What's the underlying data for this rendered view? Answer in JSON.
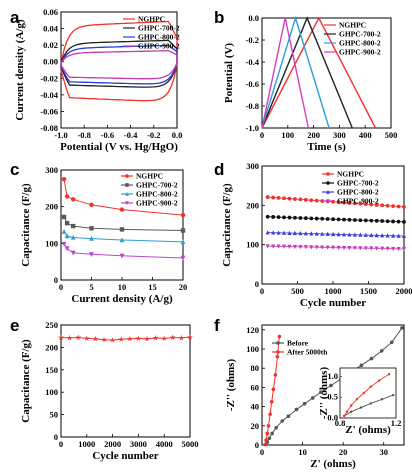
{
  "chart_data": [
    {
      "panel": "a",
      "type": "line",
      "xlabel": "Potential (V vs. Hg/HgO)",
      "ylabel": "Current density (A/g)",
      "xlim": [
        -1.0,
        0.0
      ],
      "ylim": [
        -0.08,
        0.06
      ],
      "xticks": [
        "-1.0",
        "-0.8",
        "-0.6",
        "-0.4",
        "-0.2",
        "0.0"
      ],
      "yticks": [
        "-0.08",
        "-0.06",
        "-0.04",
        "-0.02",
        "0.00",
        "0.02",
        "0.04",
        "0.06"
      ],
      "legend_position": "top-right",
      "series": [
        {
          "name": "NGHPC",
          "color": "#f2312b",
          "top": 0.046,
          "bottom": -0.046,
          "tilt": 0.006
        },
        {
          "name": "GHPC-700-2",
          "color": "#222222",
          "top": 0.024,
          "bottom": -0.03,
          "tilt": 0.004
        },
        {
          "name": "GHPC-800-2",
          "color": "#1f3fd8",
          "top": 0.018,
          "bottom": -0.026,
          "tilt": 0.004
        },
        {
          "name": "GHPC-900-2",
          "color": "#c63ab0",
          "top": 0.012,
          "bottom": -0.02,
          "tilt": 0.003
        }
      ]
    },
    {
      "panel": "b",
      "type": "line",
      "xlabel": "Time (s)",
      "ylabel": "Potential (V)",
      "xlim": [
        0,
        500
      ],
      "ylim": [
        -1.0,
        0.0
      ],
      "xticks": [
        "0",
        "100",
        "200",
        "300",
        "400",
        "500"
      ],
      "yticks": [
        "-1.0",
        "-0.8",
        "-0.6",
        "-0.4",
        "-0.2",
        "0.0"
      ],
      "legend_position": "top-right",
      "series": [
        {
          "name": "NGHPC",
          "color": "#f2312b",
          "x": [
            0,
            220,
            440
          ],
          "y": [
            -1.0,
            0.0,
            -1.0
          ]
        },
        {
          "name": "GHPC-700-2",
          "color": "#222222",
          "x": [
            0,
            175,
            350
          ],
          "y": [
            -1.0,
            0.0,
            -1.0
          ]
        },
        {
          "name": "GHPC-800-2",
          "color": "#2a9fd8",
          "x": [
            0,
            130,
            260
          ],
          "y": [
            -1.0,
            0.0,
            -1.0
          ]
        },
        {
          "name": "GHPC-900-2",
          "color": "#d23fc0",
          "x": [
            0,
            90,
            180
          ],
          "y": [
            -1.0,
            0.0,
            -1.0
          ]
        }
      ]
    },
    {
      "panel": "c",
      "type": "line",
      "xlabel": "Current density (A/g)",
      "ylabel": "Capacitance  (F/g)",
      "xlim": [
        0,
        20
      ],
      "ylim": [
        0,
        300
      ],
      "xticks": [
        "0",
        "5",
        "10",
        "15",
        "20"
      ],
      "yticks": [
        "0",
        "100",
        "200",
        "300"
      ],
      "legend_position": "top-right",
      "x": [
        0.5,
        1,
        2,
        5,
        10,
        20
      ],
      "series": [
        {
          "name": "NGHPC",
          "color": "#f2312b",
          "marker": "circle",
          "values": [
            275,
            228,
            220,
            205,
            192,
            177
          ]
        },
        {
          "name": "GHPC-700-2",
          "color": "#5a5a5a",
          "marker": "square",
          "values": [
            172,
            155,
            147,
            141,
            138,
            135
          ]
        },
        {
          "name": "GHPC-800-2",
          "color": "#2a9fd8",
          "marker": "triangle",
          "values": [
            132,
            120,
            116,
            113,
            109,
            104
          ]
        },
        {
          "name": "GHPC-900-2",
          "color": "#b748c8",
          "marker": "triangle-down",
          "values": [
            98,
            86,
            74,
            70,
            66,
            60
          ]
        }
      ]
    },
    {
      "panel": "d",
      "type": "line",
      "xlabel": "Cycle number",
      "ylabel": "Capacitance  (F/g)",
      "xlim": [
        0,
        2000
      ],
      "ylim": [
        0,
        300
      ],
      "xticks": [
        "0",
        "500",
        "1000",
        "1500",
        "2000"
      ],
      "yticks": [
        "0",
        "100",
        "200",
        "300"
      ],
      "legend_position": "top-right",
      "series": [
        {
          "name": "NGHPC",
          "color": "#f2312b",
          "marker": "circle",
          "start": 221,
          "end": 196
        },
        {
          "name": "GHPC-700-2",
          "color": "#111111",
          "marker": "circle",
          "start": 171,
          "end": 158
        },
        {
          "name": "GHPC-800-2",
          "color": "#3a3fd8",
          "marker": "triangle",
          "start": 131,
          "end": 122
        },
        {
          "name": "GHPC-900-2",
          "color": "#c23fc0",
          "marker": "triangle-down",
          "start": 96,
          "end": 89
        }
      ]
    },
    {
      "panel": "e",
      "type": "line",
      "xlabel": "Cycle number",
      "ylabel": "Capacitance  (F/g)",
      "xlim": [
        0,
        5000
      ],
      "ylim": [
        0,
        250
      ],
      "xticks": [
        "0",
        "1000",
        "2000",
        "3000",
        "4000",
        "5000"
      ],
      "yticks": [
        "0",
        "50",
        "100",
        "150",
        "200",
        "250"
      ],
      "series": [
        {
          "name": "",
          "color": "#f2312b",
          "marker": "star",
          "x": [
            0,
            333,
            667,
            1000,
            1333,
            1667,
            2000,
            2333,
            2667,
            3000,
            3333,
            3667,
            4000,
            4333,
            4667,
            5000
          ],
          "values": [
            222,
            221,
            222,
            220,
            219,
            217,
            216,
            218,
            219,
            220,
            219,
            221,
            220,
            222,
            221,
            223
          ]
        }
      ]
    },
    {
      "panel": "f",
      "type": "line",
      "xlabel": "Z' (ohms)",
      "ylabel": "-Z'' (ohms)",
      "xlim": [
        0,
        35
      ],
      "ylim": [
        0,
        125
      ],
      "xticks": [
        "0",
        "10",
        "20",
        "30"
      ],
      "yticks": [
        "0",
        "20",
        "40",
        "60",
        "80",
        "100",
        "120"
      ],
      "legend_position": "top-left",
      "series": [
        {
          "name": "Before",
          "color": "#555555",
          "marker": "circle",
          "x": [
            0.9,
            1.3,
            1.8,
            2.5,
            3.5,
            5,
            6.5,
            8.5,
            10.5,
            12.5,
            14.5,
            17,
            19.5,
            22,
            24.5,
            27,
            29.5,
            32,
            34.5
          ],
          "values": [
            0.5,
            3,
            7,
            12,
            18,
            25,
            30,
            37,
            43,
            49,
            55,
            62,
            69,
            76,
            83,
            90,
            98,
            107,
            122
          ]
        },
        {
          "name": "After 5000th",
          "color": "#f2312b",
          "marker": "circle",
          "x": [
            0.8,
            1.0,
            1.3,
            1.6,
            2.0,
            2.4,
            2.8,
            3.3,
            3.8,
            4.3
          ],
          "values": [
            0.5,
            5,
            12,
            20,
            32,
            45,
            58,
            73,
            92,
            113
          ]
        }
      ],
      "inset": {
        "xlabel": "Z' (ohms)",
        "ylabel": "-Z'' (ohms)",
        "xlim": [
          0.8,
          1.2
        ],
        "ylim": [
          0,
          1.2
        ],
        "xticks": [
          "0.8",
          "1.2"
        ],
        "yticks": [
          "0.0",
          "0.5",
          "1.0"
        ],
        "series": [
          {
            "name": "Before",
            "color": "#555555",
            "x": [
              0.83,
              0.88,
              0.95,
              1.02,
              1.1,
              1.18
            ],
            "values": [
              0.05,
              0.15,
              0.25,
              0.35,
              0.45,
              0.55
            ]
          },
          {
            "name": "After 5000th",
            "color": "#f2312b",
            "x": [
              0.83,
              0.85,
              0.88,
              0.92,
              0.97,
              1.02,
              1.08,
              1.15
            ],
            "values": [
              0.05,
              0.15,
              0.3,
              0.45,
              0.6,
              0.75,
              0.9,
              1.05
            ]
          }
        ]
      }
    }
  ]
}
